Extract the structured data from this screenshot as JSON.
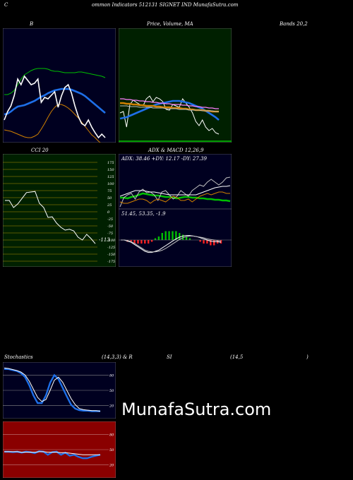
{
  "header": {
    "left_letter": "C",
    "title": "ommon  Indicators 512131 SIGNET IND MunafaSutra.com"
  },
  "panels": {
    "bollinger": {
      "title": "B",
      "title_bands": "Bands 20,2"
    },
    "price_ma": {
      "title": "Price,  Volume,  MA"
    },
    "cci": {
      "title": "CCI 20",
      "last_value": "-113"
    },
    "adx_macd": {
      "title": "ADX  & MACD 12,26,9",
      "adx_text": "ADX: 38.46  +DY: 12.17 -DY: 27.39",
      "macd_text": "51.45,  53.35,  -1.9"
    },
    "stochastics": {
      "title_left": "Stochastics",
      "title_mid": "(14,3,3) & R",
      "title_rsi": "SI",
      "title_params": "(14,5",
      "title_close": ")"
    },
    "watermark": "MunafaSutra.com"
  },
  "colors": {
    "background": "#000000",
    "dark_navy": "#000020",
    "price_panel_bg": "#002000",
    "cci_bg": "#002000",
    "rsi_bg": "#8a0000",
    "green": "#00c000",
    "blue": "#1e6fe8",
    "orange": "#d08000",
    "white": "#ffffff"
  },
  "chart_data": [
    {
      "type": "line",
      "name": "bollinger",
      "series": [
        {
          "color": "#00c000",
          "values": [
            94,
            94,
            92,
            88,
            80,
            72,
            66,
            63,
            60,
            58,
            57,
            57,
            57,
            58,
            60,
            61,
            61,
            62,
            63,
            63,
            63,
            63,
            62,
            62,
            63,
            64,
            65,
            66,
            67,
            68,
            70
          ]
        },
        {
          "color": "#1e6fe8",
          "values": [
            122,
            121,
            118,
            114,
            111,
            110,
            109,
            107,
            105,
            103,
            100,
            97,
            95,
            92,
            90,
            88,
            87,
            86,
            86,
            86,
            87,
            89,
            91,
            93,
            96,
            100,
            104,
            108,
            112,
            116,
            120
          ]
        },
        {
          "color": "#d08000",
          "values": [
            144,
            145,
            146,
            148,
            150,
            152,
            154,
            155,
            155,
            153,
            150,
            143,
            135,
            126,
            118,
            112,
            108,
            108,
            110,
            113,
            117,
            122,
            127,
            133,
            139,
            145,
            151,
            155,
            160,
            164,
            168
          ]
        },
        {
          "color": "#ffffff",
          "values": [
            130,
            118,
            110,
            95,
            72,
            80,
            68,
            74,
            80,
            78,
            72,
            105,
            98,
            100,
            95,
            90,
            112,
            96,
            84,
            80,
            92,
            110,
            125,
            135,
            138,
            130,
            140,
            148,
            155,
            150,
            155
          ]
        }
      ]
    },
    {
      "type": "line",
      "name": "price_ma",
      "series": [
        {
          "color": "#ffffff",
          "values": [
            120,
            118,
            140,
            108,
            102,
            105,
            108,
            110,
            100,
            96,
            104,
            98,
            100,
            104,
            115,
            116,
            108,
            110,
            112,
            100,
            106,
            112,
            120,
            132,
            138,
            130,
            140,
            145,
            142,
            148,
            150
          ]
        },
        {
          "color": "#1e6fe8",
          "values": [
            128,
            127,
            126,
            124,
            122,
            120,
            118,
            116,
            114,
            112,
            110,
            108,
            107,
            106,
            105,
            104,
            103,
            103,
            103,
            104,
            105,
            106,
            108,
            110,
            112,
            114,
            117,
            120,
            123,
            126,
            130
          ]
        },
        {
          "color": "#d08000",
          "values": [
            106,
            106,
            107,
            107,
            108,
            108,
            109,
            109,
            110,
            110,
            110,
            111,
            111,
            112,
            112,
            112,
            113,
            113,
            113,
            114,
            114,
            115,
            115,
            116,
            116,
            116,
            117,
            117,
            118,
            118,
            118
          ]
        },
        {
          "color": "#ff80ff",
          "values": [
            100,
            100,
            101,
            101,
            102,
            102,
            103,
            103,
            104,
            104,
            105,
            105,
            106,
            106,
            107,
            107,
            108,
            108,
            108,
            109,
            109,
            110,
            110,
            111,
            111,
            112,
            112,
            113,
            113,
            114,
            114
          ]
        },
        {
          "color": "#c0c0c0",
          "values": [
            110,
            110,
            110,
            111,
            111,
            111,
            112,
            112,
            112,
            112,
            113,
            113,
            113,
            113,
            114,
            114,
            114,
            114,
            115,
            115,
            115,
            116,
            116,
            116,
            116,
            117,
            117,
            117,
            117,
            118,
            118
          ]
        }
      ]
    },
    {
      "type": "line",
      "name": "cci",
      "ylim": [
        -175,
        175
      ],
      "ticks": [
        175,
        150,
        125,
        100,
        75,
        50,
        25,
        0,
        -25,
        -50,
        -75,
        -100,
        -125,
        -150,
        -175
      ],
      "series": [
        {
          "color": "#ffffff",
          "values": [
            40,
            40,
            15,
            28,
            48,
            68,
            70,
            72,
            30,
            15,
            -20,
            -18,
            -40,
            -55,
            -65,
            -62,
            -68,
            -90,
            -100,
            -80,
            -95,
            -113
          ]
        }
      ]
    },
    {
      "type": "line",
      "name": "adx",
      "series": [
        {
          "color": "#00c000",
          "values": [
            62,
            62,
            63,
            61,
            60,
            58,
            56,
            57,
            58,
            59,
            59,
            60,
            61,
            61,
            62,
            63,
            62,
            61,
            61,
            62,
            62,
            63,
            63,
            64,
            64,
            65,
            65,
            66,
            66,
            67
          ]
        },
        {
          "color": "#c0c0c0",
          "values": [
            75,
            62,
            58,
            56,
            64,
            54,
            50,
            55,
            54,
            58,
            66,
            54,
            52,
            58,
            64,
            60,
            52,
            56,
            60,
            52,
            48,
            44,
            46,
            40,
            36,
            40,
            44,
            40,
            34,
            33
          ]
        },
        {
          "color": "#d08000",
          "values": [
            68,
            70,
            70,
            68,
            66,
            64,
            64,
            66,
            70,
            66,
            64,
            66,
            68,
            64,
            60,
            62,
            66,
            66,
            64,
            68,
            64,
            60,
            58,
            56,
            58,
            56,
            54,
            54,
            56,
            56
          ]
        },
        {
          "color": "#ffffff",
          "values": [
            60,
            58,
            56,
            54,
            52,
            52,
            52,
            53,
            54,
            54,
            55,
            56,
            57,
            58,
            58,
            58,
            58,
            58,
            58,
            58,
            58,
            56,
            54,
            52,
            50,
            48,
            47,
            46,
            46,
            45
          ]
        }
      ]
    },
    {
      "type": "line",
      "name": "macd",
      "series": [
        {
          "color": "#ffffff",
          "values": [
            0,
            0,
            -2,
            -4,
            -8,
            -12,
            -16,
            -20,
            -22,
            -22,
            -20,
            -18,
            -14,
            -10,
            -6,
            -2,
            2,
            5,
            7,
            8,
            8,
            7,
            6,
            4,
            2,
            0,
            -2,
            -3,
            -3,
            -4
          ]
        },
        {
          "color": "#c0c0c0",
          "values": [
            0,
            0,
            -1,
            -3,
            -6,
            -10,
            -14,
            -18,
            -20,
            -21,
            -21,
            -20,
            -18,
            -15,
            -11,
            -7,
            -3,
            1,
            4,
            6,
            7,
            7,
            6,
            5,
            4,
            2,
            1,
            0,
            -1,
            -2
          ]
        }
      ]
    },
    {
      "type": "line",
      "name": "stochastics",
      "ylim": [
        0,
        100
      ],
      "ticks": [
        80,
        50,
        20
      ],
      "series": [
        {
          "color": "#1e6fe8",
          "values": [
            92,
            92,
            90,
            88,
            84,
            76,
            60,
            40,
            25,
            25,
            40,
            65,
            80,
            72,
            55,
            38,
            22,
            14,
            11,
            10,
            10,
            9,
            9,
            9
          ]
        },
        {
          "color": "#ffffff",
          "values": [
            94,
            93,
            91,
            89,
            86,
            80,
            68,
            52,
            36,
            28,
            32,
            50,
            70,
            76,
            66,
            50,
            34,
            22,
            14,
            12,
            11,
            10,
            10,
            9
          ]
        }
      ]
    },
    {
      "type": "line",
      "name": "rsi",
      "ylim": [
        0,
        100
      ],
      "ticks": [
        80,
        50,
        20
      ],
      "series": [
        {
          "color": "#1e6fe8",
          "values": [
            46,
            46,
            45,
            46,
            44,
            46,
            45,
            43,
            47,
            46,
            40,
            45,
            46,
            40,
            44,
            38,
            40,
            36,
            33,
            33,
            36,
            38,
            40
          ]
        },
        {
          "color": "#ffffff",
          "values": [
            46,
            46,
            46,
            46,
            45,
            45,
            45,
            45,
            46,
            46,
            45,
            45,
            45,
            44,
            44,
            43,
            42,
            41,
            40,
            40,
            40,
            40,
            40
          ]
        }
      ]
    }
  ]
}
